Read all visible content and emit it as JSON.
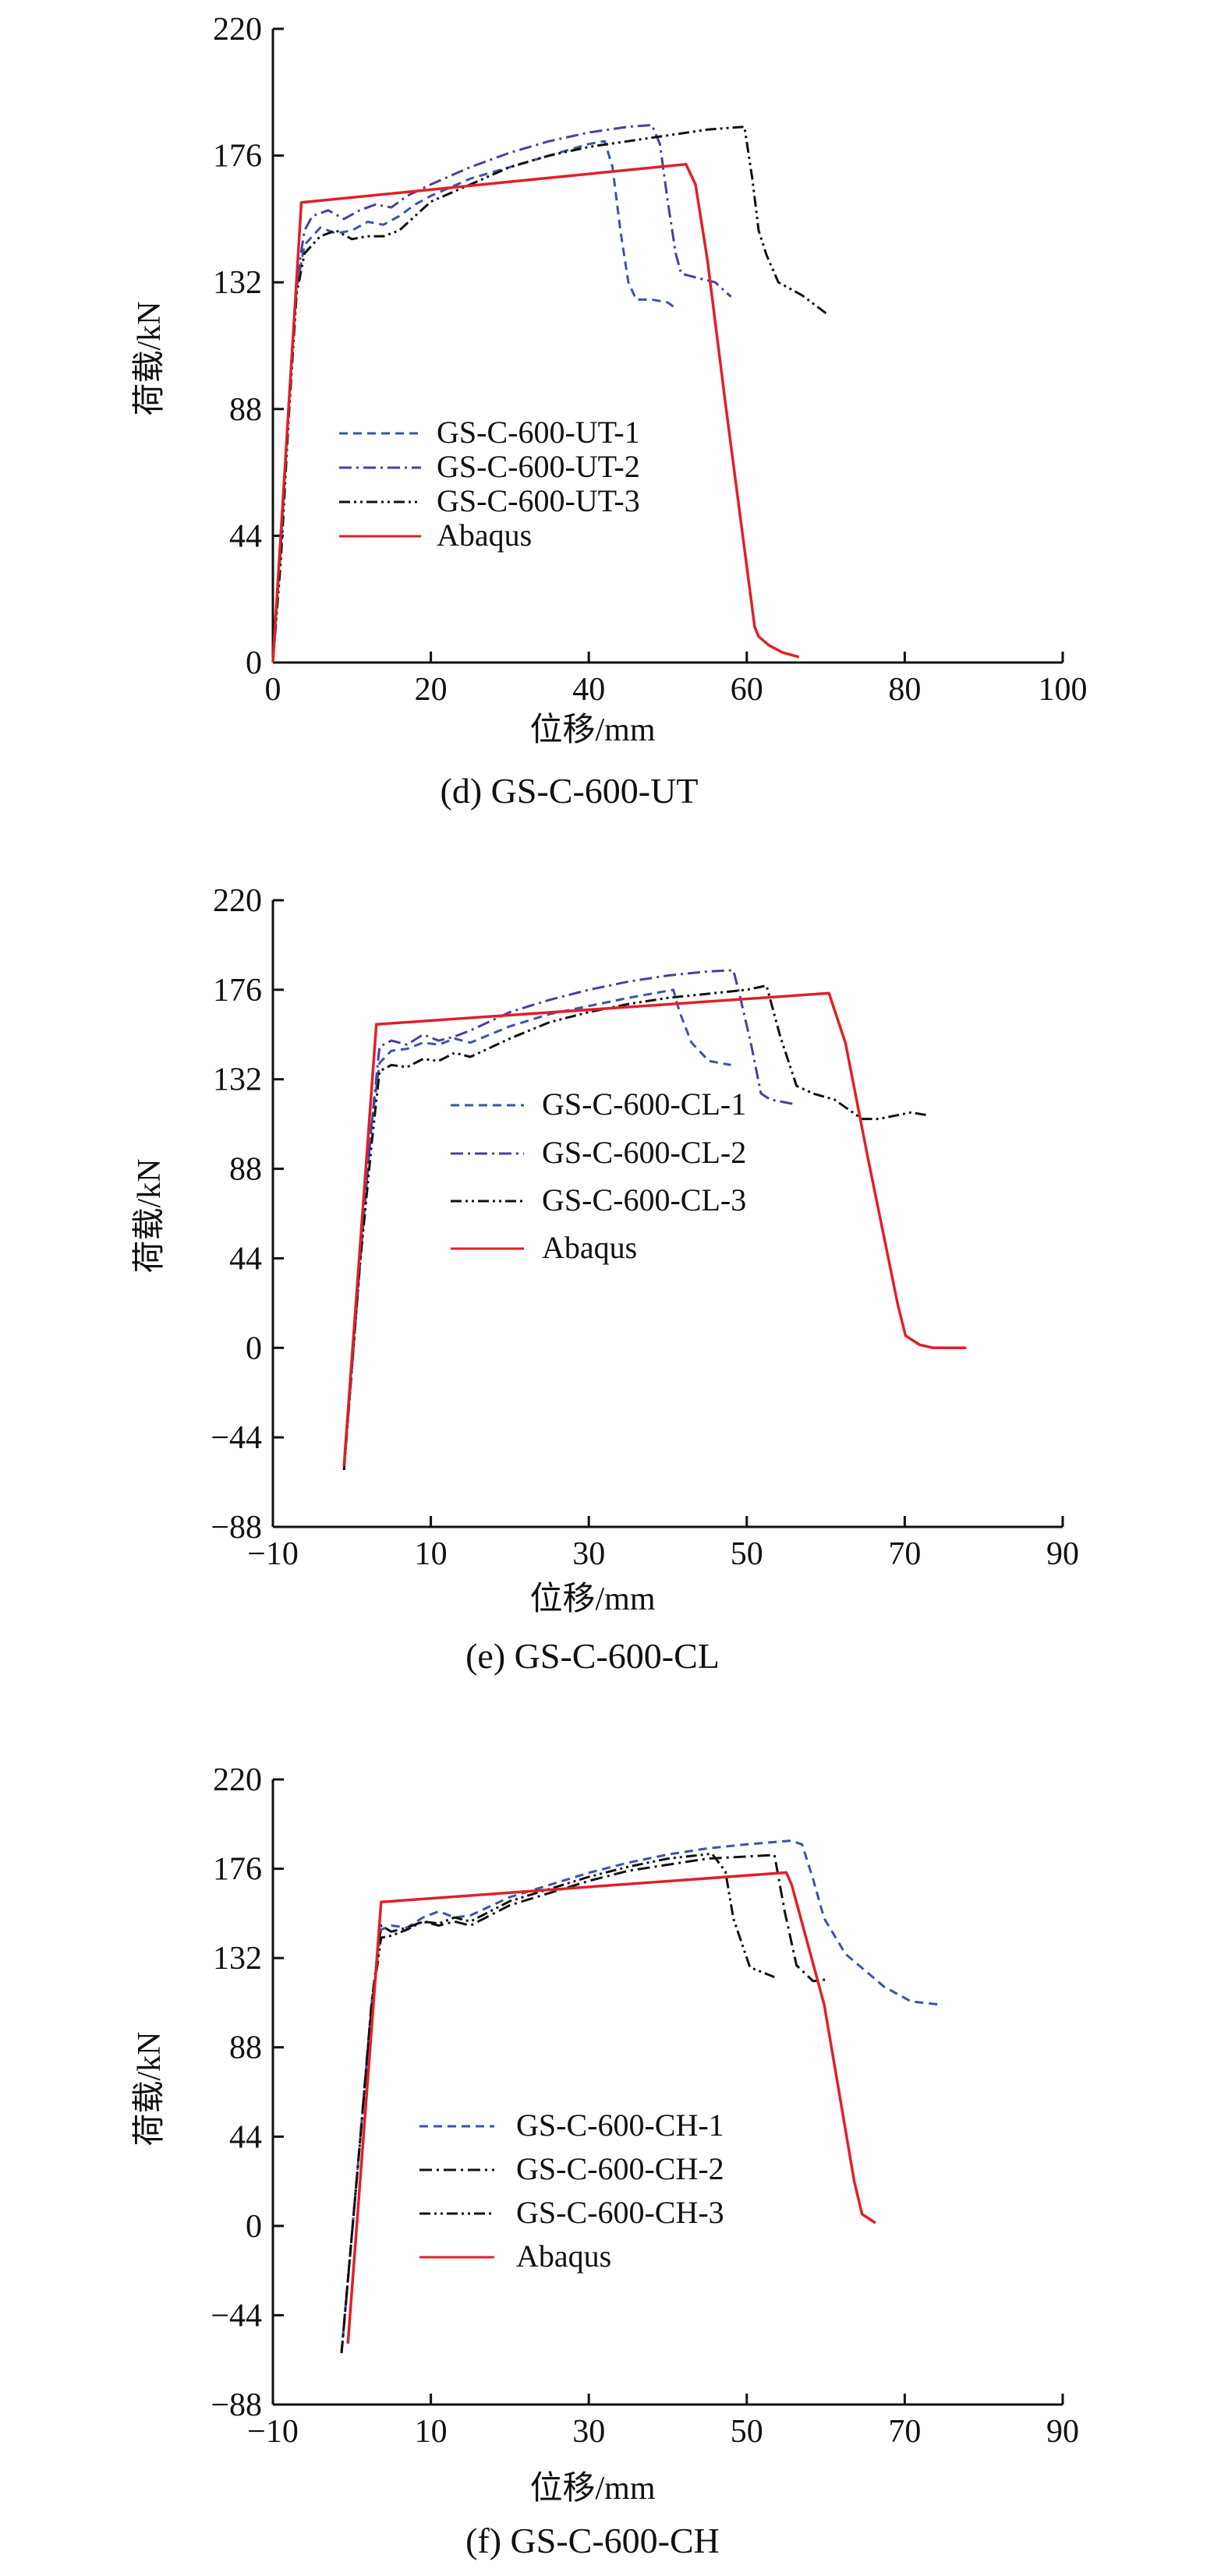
{
  "chart_data": [
    {
      "type": "line",
      "title": "(d) GS-C-600-UT",
      "xlabel": "位移/mm",
      "ylabel": "荷载/kN",
      "xlim": [
        0,
        100
      ],
      "ylim": [
        0,
        220
      ],
      "xticks": [
        0,
        20,
        40,
        60,
        80,
        100
      ],
      "yticks": [
        0,
        44,
        88,
        132,
        176,
        220
      ],
      "legend_position": "center-left",
      "series": [
        {
          "name": "GS-C-600-UT-1",
          "color": "#3a55a4",
          "style": "dashed",
          "x": [
            0,
            1,
            2,
            3,
            4,
            6,
            8,
            10,
            12,
            14,
            16,
            18,
            20,
            25,
            30,
            35,
            40,
            42,
            43,
            44,
            45,
            46,
            48,
            50,
            51
          ],
          "y": [
            0,
            40,
            90,
            130,
            145,
            151,
            149,
            150,
            153,
            152,
            155,
            159,
            162,
            168,
            172,
            176,
            180,
            181,
            172,
            150,
            132,
            126,
            126,
            125,
            123
          ]
        },
        {
          "name": "GS-C-600-UT-2",
          "color": "#4b3f9e",
          "style": "dashdot",
          "x": [
            0,
            1,
            2,
            3,
            4,
            5,
            7,
            9,
            11,
            13,
            15,
            17,
            20,
            25,
            30,
            35,
            40,
            45,
            48,
            49,
            50,
            51,
            51.7,
            54.5,
            56,
            58
          ],
          "y": [
            0,
            40,
            90,
            132,
            150,
            155,
            157,
            154,
            157,
            159,
            158,
            162,
            166,
            172,
            177,
            181,
            184,
            186,
            186.6,
            180,
            160,
            142,
            135,
            133,
            132,
            127
          ]
        },
        {
          "name": "GS-C-600-UT-3",
          "color": "#111111",
          "style": "dashdotdot",
          "x": [
            0,
            1,
            2,
            3,
            4,
            6,
            8,
            10,
            12,
            14,
            16,
            18,
            20,
            25,
            30,
            35,
            40,
            45,
            50,
            55,
            59.7,
            60.7,
            61.5,
            62.5,
            64,
            67,
            70.4
          ],
          "y": [
            0,
            35,
            85,
            128,
            142,
            148,
            150,
            147,
            148,
            148,
            150,
            155,
            160,
            166,
            172,
            176,
            179,
            181,
            183,
            185,
            186,
            168,
            150,
            141.5,
            132,
            127.5,
            120.5
          ]
        },
        {
          "name": "Abaqus",
          "color": "#e0202a",
          "style": "solid",
          "x": [
            0,
            3.6,
            52.3,
            53.5,
            55,
            57.3,
            61,
            61.5,
            62.8,
            64.5,
            66.6
          ],
          "y": [
            0,
            159.7,
            173,
            166,
            140,
            90,
            12.4,
            9,
            6,
            3.5,
            1.9
          ]
        }
      ]
    },
    {
      "type": "line",
      "title": "(e) GS-C-600-CL",
      "xlabel": "位移/mm",
      "ylabel": "荷载/kN",
      "xlim": [
        -10,
        90
      ],
      "ylim": [
        -88,
        220
      ],
      "xticks": [
        -10,
        10,
        30,
        50,
        70,
        90
      ],
      "yticks": [
        -88,
        -44,
        0,
        44,
        88,
        132,
        176,
        220
      ],
      "legend_position": "center",
      "series": [
        {
          "name": "GS-C-600-CL-1",
          "color": "#3a55a4",
          "style": "dashed",
          "x": [
            -1,
            1,
            2.5,
            3.5,
            5,
            7,
            9,
            11,
            13,
            15,
            20,
            25,
            30,
            35,
            40.7,
            41.5,
            43,
            45.2,
            48
          ],
          "y": [
            -60,
            40,
            110,
            140,
            146,
            147,
            150,
            149,
            152,
            150,
            158,
            164,
            168,
            172,
            176,
            165,
            150,
            141,
            139
          ]
        },
        {
          "name": "GS-C-600-CL-2",
          "color": "#4b3f9e",
          "style": "dashdot",
          "x": [
            -1,
            1,
            2.5,
            3.5,
            5,
            7,
            9,
            11,
            13,
            15,
            20,
            25,
            30,
            35,
            40,
            45,
            48.3,
            49,
            50.5,
            51.8,
            53,
            56.3
          ],
          "y": [
            -60,
            40,
            110,
            148,
            151,
            149,
            154,
            151,
            153,
            156,
            165,
            171,
            176,
            180,
            183,
            185,
            185.6,
            175,
            150,
            125,
            122,
            119.6
          ]
        },
        {
          "name": "GS-C-600-CL-3",
          "color": "#111111",
          "style": "dashdotdot",
          "x": [
            -1,
            1,
            2.5,
            3.5,
            5,
            7,
            9,
            11,
            13,
            15,
            20,
            25,
            30,
            35,
            40,
            45,
            50,
            52.5,
            54.2,
            56.3,
            58.4,
            61.1,
            64.6,
            66.7,
            70.8,
            72.8
          ],
          "y": [
            -60,
            40,
            100,
            136,
            139,
            138,
            142,
            141,
            145,
            143,
            152,
            160,
            165,
            169,
            172,
            174,
            176,
            178,
            153.6,
            128.8,
            125,
            122,
            112.5,
            112.5,
            115.7,
            114.4
          ]
        },
        {
          "name": "Abaqus",
          "color": "#e0202a",
          "style": "solid",
          "x": [
            -1,
            3.1,
            60.4,
            62.5,
            65.3,
            69.1,
            70.1,
            71.9,
            73.6,
            77.8
          ],
          "y": [
            -58,
            159,
            174.3,
            149.8,
            94,
            21.6,
            6,
            1.5,
            0,
            0
          ]
        }
      ]
    },
    {
      "type": "line",
      "title": "(f) GS-C-600-CH",
      "xlabel": "位移/mm",
      "ylabel": "荷载/kN",
      "xlim": [
        -10,
        90
      ],
      "ylim": [
        -88,
        220
      ],
      "xticks": [
        -10,
        10,
        30,
        50,
        70,
        90
      ],
      "yticks": [
        -88,
        -44,
        0,
        44,
        88,
        132,
        176,
        220
      ],
      "legend_position": "bottom-left",
      "series": [
        {
          "name": "GS-C-600-CH-1",
          "color": "#3a55a4",
          "style": "dashed",
          "x": [
            -1.3,
            1,
            2.5,
            3.7,
            5,
            7,
            9,
            11,
            13,
            15,
            20,
            25,
            30,
            35,
            40,
            45,
            50,
            55.6,
            57,
            58.4,
            59.8,
            62.5,
            67.4,
            70.8,
            74.6
          ],
          "y": [
            -62,
            40,
            110,
            146,
            148,
            147,
            152,
            155,
            152,
            153,
            162,
            168,
            174,
            179,
            183,
            186,
            188,
            189.8,
            188,
            170.8,
            151.5,
            134,
            117.8,
            110.6,
            109
          ]
        },
        {
          "name": "GS-C-600-CH-2",
          "color": "#111111",
          "style": "dashdot",
          "x": [
            -1.3,
            1,
            2.5,
            3.7,
            5,
            7,
            9,
            11,
            13,
            15,
            20,
            25,
            30,
            35,
            40,
            45,
            50,
            53.5,
            54.8,
            56.3,
            58.4,
            60.4
          ],
          "y": [
            -62.7,
            40,
            110,
            148,
            145,
            147,
            150,
            148,
            150,
            148,
            158,
            164,
            170,
            175,
            178,
            181,
            182,
            182.8,
            155,
            128.4,
            120.6,
            121.6
          ]
        },
        {
          "name": "GS-C-600-CH-3",
          "color": "#111111",
          "style": "dashdotdot",
          "x": [
            -1.3,
            1,
            2.5,
            3.7,
            5,
            7,
            9,
            11,
            13,
            15,
            20,
            25,
            30,
            35,
            40,
            45.6,
            47.3,
            48.3,
            50.4,
            53.5
          ],
          "y": [
            -62,
            40,
            108,
            142,
            143,
            146,
            150,
            149,
            152,
            150,
            160,
            166,
            172,
            177,
            181,
            183.4,
            174.7,
            151.5,
            127.4,
            122.6
          ]
        },
        {
          "name": "Abaqus",
          "color": "#e0202a",
          "style": "solid",
          "x": [
            -0.5,
            3.7,
            55,
            55.7,
            59.8,
            63.6,
            64.6,
            66.3
          ],
          "y": [
            -58,
            159.6,
            174.1,
            168,
            109,
            22,
            5.8,
            1.5
          ]
        }
      ]
    }
  ]
}
